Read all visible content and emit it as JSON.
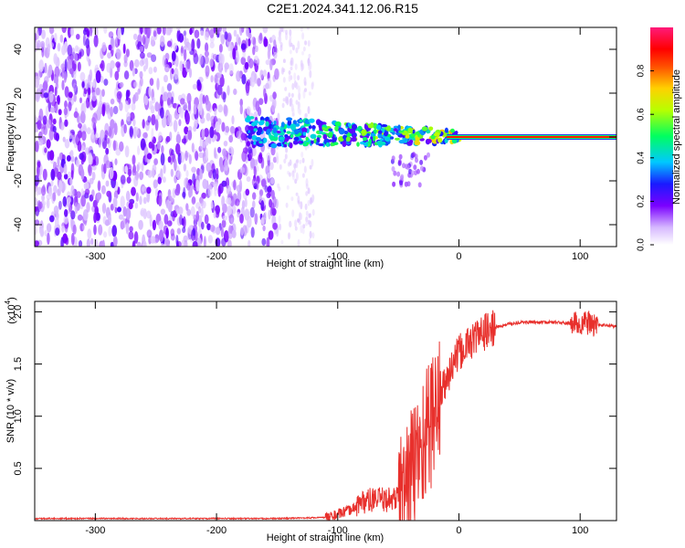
{
  "page_title": "C2E1.2024.341.12.06.R15",
  "colors": {
    "snr_line": "#e8302c",
    "axis": "#000000",
    "background": "#ffffff"
  },
  "chart_data": [
    {
      "type": "heatmap",
      "title": "",
      "xlabel": "Height of straight line (km)",
      "ylabel": "Frequency (Hz)",
      "xlim": [
        -350,
        130
      ],
      "ylim": [
        -50,
        50
      ],
      "xticks": [
        -300,
        -200,
        -100,
        0,
        100
      ],
      "yticks": [
        -40,
        -20,
        0,
        20,
        40
      ],
      "colorbar": {
        "label": "Normalized spectral amplitude",
        "range": [
          0,
          1
        ],
        "ticks": [
          0.0,
          0.2,
          0.4,
          0.6,
          0.8
        ],
        "colormap": "rainbow (white-violet-blue-cyan-green-yellow-red-magenta)"
      },
      "regions": [
        {
          "x_range": [
            -350,
            -150
          ],
          "freq_range": [
            -50,
            50
          ],
          "amplitude": 0.1
        },
        {
          "x_range": [
            -150,
            -120
          ],
          "freq_range": [
            -50,
            50
          ],
          "amplitude": 0.03
        },
        {
          "x_range": [
            -175,
            -40
          ],
          "freq_range": [
            -5,
            8
          ],
          "amplitude": 0.3
        },
        {
          "x_range": [
            -40,
            0
          ],
          "freq_range": [
            -3,
            4
          ],
          "amplitude": 0.6
        },
        {
          "x_range": [
            0,
            130
          ],
          "freq_range": [
            -1,
            1
          ],
          "amplitude": 0.8
        }
      ]
    },
    {
      "type": "line",
      "title": "",
      "xlabel": "Height of straight line (km)",
      "ylabel": "SNR (10 * v/v)",
      "y_multiplier": "(x10",
      "y_multiplier_exp": "4",
      "xlim": [
        -350,
        130
      ],
      "ylim": [
        0,
        2.1
      ],
      "xticks": [
        -300,
        -200,
        -100,
        0,
        100
      ],
      "yticks": [
        0.5,
        1.0,
        1.5,
        2.0
      ],
      "series": [
        {
          "name": "",
          "x": [
            -350,
            -150,
            -110,
            -100,
            -90,
            -80,
            -70,
            -60,
            -50,
            -45,
            -40,
            -35,
            -30,
            -25,
            -20,
            -15,
            -10,
            -5,
            0,
            10,
            20,
            30,
            40,
            50,
            60,
            70,
            80,
            90,
            95,
            100,
            105,
            110,
            120,
            130
          ],
          "y": [
            0.02,
            0.02,
            0.03,
            0.06,
            0.1,
            0.18,
            0.2,
            0.2,
            0.22,
            0.3,
            0.45,
            0.6,
            0.75,
            0.9,
            1.05,
            1.2,
            1.35,
            1.5,
            1.6,
            1.72,
            1.8,
            1.85,
            1.88,
            1.9,
            1.9,
            1.9,
            1.9,
            1.89,
            1.89,
            1.88,
            1.9,
            1.88,
            1.87,
            1.86
          ]
        }
      ]
    }
  ]
}
